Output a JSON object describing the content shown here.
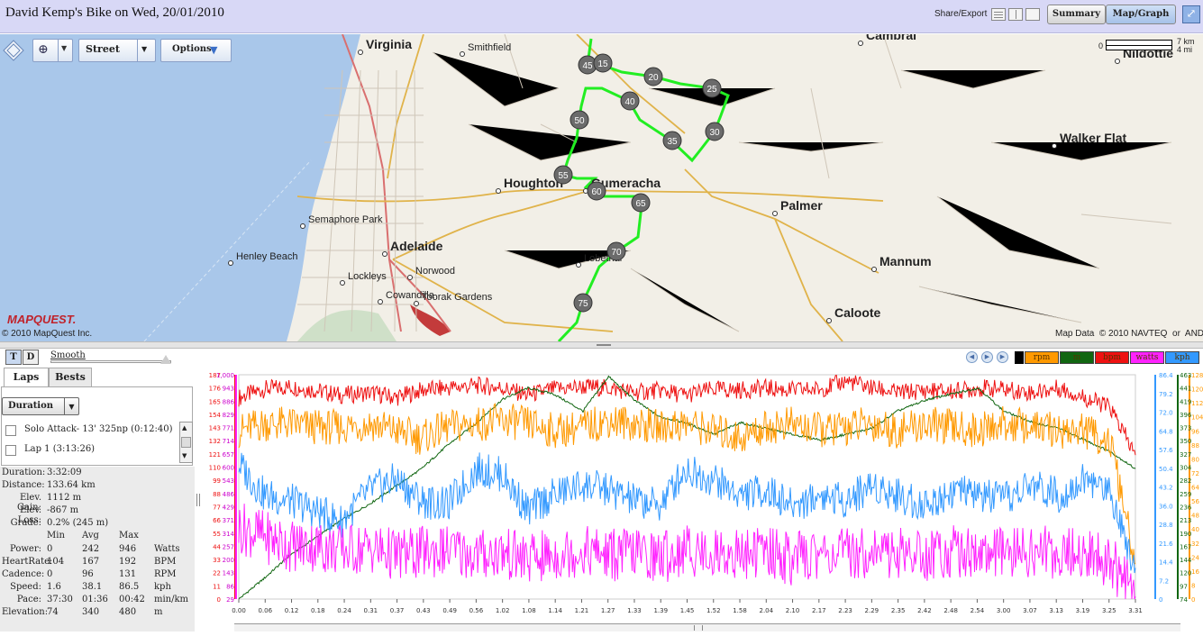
{
  "header": {
    "title": "David Kemp's Bike on Wed, 20/01/2010",
    "share": "Share/Export",
    "summary_btn": "Summary",
    "mapgraph_btn": "Map/Graph"
  },
  "map": {
    "street_select": "Street",
    "options_btn": "Options",
    "scale_km": "7 km",
    "scale_mi": "4 mi",
    "scale_zero": "0",
    "copyright": "© 2010 MapQuest Inc.",
    "logo": "MAPQUEST.",
    "map_data": "Map Data  © 2010 NAVTEQ  or  AND",
    "places": [
      {
        "name": "Virginia",
        "big": true
      },
      {
        "name": "Smithfield",
        "big": false
      },
      {
        "name": "Cambrai",
        "big": true
      },
      {
        "name": "Nildottie",
        "big": true
      },
      {
        "name": "Walker Flat",
        "big": true
      },
      {
        "name": "Houghton",
        "big": true
      },
      {
        "name": "Gumeracha",
        "big": true
      },
      {
        "name": "Palmer",
        "big": true
      },
      {
        "name": "Semaphore Park",
        "big": false
      },
      {
        "name": "Adelaide",
        "big": true
      },
      {
        "name": "Henley Beach",
        "big": false
      },
      {
        "name": "Norwood",
        "big": false
      },
      {
        "name": "Lockleys",
        "big": false
      },
      {
        "name": "Cowandilla",
        "big": false
      },
      {
        "name": "Toorak Gardens",
        "big": false
      },
      {
        "name": "Lobethal",
        "big": false
      },
      {
        "name": "Mannum",
        "big": true
      },
      {
        "name": "Caloote",
        "big": true
      }
    ],
    "markers": [
      "45",
      "15",
      "20",
      "25",
      "40",
      "50",
      "30",
      "35",
      "55",
      "60",
      "65",
      "70",
      "75"
    ]
  },
  "left": {
    "t_btn": "T",
    "d_btn": "D",
    "smooth": "Smooth",
    "tab_laps": "Laps",
    "tab_bests": "Bests",
    "duration_select": "Duration",
    "laps": [
      "Solo Attack- 13' 325np (0:12:40)",
      "Lap 1 (3:13:26)"
    ],
    "summary": [
      {
        "label": "Duration:",
        "value": "3:32:09"
      },
      {
        "label": "Distance:",
        "value": "133.64 km"
      },
      {
        "label": "Elev. Gain:",
        "value": "1112 m"
      },
      {
        "label": "Elev. Loss:",
        "value": "-867 m"
      },
      {
        "label": "Grade:",
        "value": "0.2% (245 m)"
      }
    ],
    "col_headers": [
      "Min",
      "Avg",
      "Max"
    ],
    "rows": [
      {
        "label": "Power:",
        "min": "0",
        "avg": "242",
        "max": "946",
        "unit": "Watts"
      },
      {
        "label": "HeartRate:",
        "min": "104",
        "avg": "167",
        "max": "192",
        "unit": "BPM"
      },
      {
        "label": "Cadence:",
        "min": "0",
        "avg": "96",
        "max": "131",
        "unit": "RPM"
      },
      {
        "label": "Speed:",
        "min": "1.6",
        "avg": "38.1",
        "max": "86.5",
        "unit": "kph"
      },
      {
        "label": "Pace:",
        "min": "37:30",
        "avg": "01:36",
        "max": "00:42",
        "unit": "min/km"
      },
      {
        "label": "Elevation:",
        "min": "74",
        "avg": "340",
        "max": "480",
        "unit": "m"
      }
    ]
  },
  "graph": {
    "legend": [
      {
        "label": "rpm",
        "color": "#ff9900"
      },
      {
        "label": "m",
        "color": "#116611"
      },
      {
        "label": "bpm",
        "color": "#ee1111"
      },
      {
        "label": "watts",
        "color": "#ff22ff"
      },
      {
        "label": "kph",
        "color": "#3399ff"
      }
    ],
    "x_ticks": [
      "0.00",
      "0.06",
      "0.12",
      "0.18",
      "0.24",
      "0.31",
      "0.37",
      "0.43",
      "0.49",
      "0.56",
      "1.02",
      "1.08",
      "1.14",
      "1.21",
      "1.27",
      "1.33",
      "1.39",
      "1.45",
      "1.52",
      "1.58",
      "2.04",
      "2.10",
      "2.17",
      "2.23",
      "2.29",
      "2.35",
      "2.42",
      "2.48",
      "2.54",
      "3.00",
      "3.07",
      "3.13",
      "3.19",
      "3.25",
      "3.31"
    ],
    "axis_bpm": [
      "187",
      "176",
      "165",
      "154",
      "143",
      "132",
      "121",
      "110",
      "99",
      "88",
      "77",
      "66",
      "55",
      "44",
      "33",
      "22",
      "11",
      "0"
    ],
    "axis_watts": [
      "1,000",
      "943",
      "886",
      "829",
      "771",
      "714",
      "657",
      "600",
      "543",
      "486",
      "429",
      "371",
      "314",
      "257",
      "200",
      "143",
      "86",
      "29"
    ],
    "axis_kph": [
      "86.4",
      "79.2",
      "72.0",
      "64.8",
      "57.6",
      "50.4",
      "43.2",
      "36.0",
      "28.8",
      "21.6",
      "14.4",
      "7.2",
      "0"
    ],
    "axis_m": [
      "463",
      "441",
      "419",
      "396",
      "373",
      "350",
      "327",
      "304",
      "282",
      "259",
      "236",
      "213",
      "190",
      "167",
      "144",
      "120",
      "97",
      "74"
    ],
    "axis_rpm": [
      "128",
      "120",
      "112",
      "104",
      "96",
      "88",
      "80",
      "72",
      "64",
      "56",
      "48",
      "40",
      "32",
      "24",
      "16",
      "8",
      "0"
    ]
  },
  "chart_data": {
    "type": "line",
    "x": [
      0,
      6,
      12,
      18,
      24,
      31,
      37,
      43,
      49,
      56,
      62,
      68,
      74,
      81,
      87,
      93,
      99,
      105,
      112,
      118,
      124,
      130,
      137,
      143,
      149,
      155,
      162,
      168,
      174,
      180,
      187,
      193,
      199,
      205,
      211
    ],
    "xlabel": "",
    "series": [
      {
        "name": "bpm",
        "color": "#ee1111",
        "values": [
          168,
          175,
          177,
          174,
          170,
          172,
          168,
          174,
          176,
          178,
          176,
          170,
          175,
          177,
          176,
          172,
          174,
          170,
          175,
          174,
          176,
          174,
          175,
          182,
          176,
          172,
          174,
          173,
          176,
          175,
          172,
          176,
          168,
          160,
          120
        ]
      },
      {
        "name": "m",
        "color": "#116611",
        "values": [
          74,
          110,
          150,
          180,
          210,
          240,
          270,
          300,
          340,
          380,
          420,
          440,
          430,
          400,
          460,
          420,
          390,
          380,
          360,
          380,
          370,
          360,
          350,
          360,
          370,
          400,
          420,
          430,
          440,
          400,
          380,
          370,
          350,
          330,
          300
        ]
      },
      {
        "name": "rpm",
        "color": "#ff9900",
        "values": [
          96,
          100,
          100,
          98,
          98,
          100,
          96,
          92,
          98,
          100,
          102,
          100,
          96,
          98,
          102,
          100,
          98,
          100,
          96,
          92,
          98,
          100,
          96,
          98,
          100,
          96,
          100,
          98,
          96,
          100,
          98,
          96,
          96,
          90,
          20
        ]
      },
      {
        "name": "kph",
        "color": "#3399ff",
        "values": [
          52,
          40,
          38,
          34,
          30,
          42,
          46,
          38,
          36,
          50,
          48,
          34,
          40,
          44,
          42,
          38,
          36,
          50,
          46,
          40,
          42,
          36,
          40,
          38,
          44,
          40,
          36,
          42,
          40,
          38,
          44,
          40,
          46,
          42,
          12
        ]
      },
      {
        "name": "watts",
        "color": "#ff22ff",
        "values": [
          340,
          300,
          260,
          260,
          240,
          250,
          220,
          230,
          240,
          220,
          230,
          200,
          220,
          240,
          220,
          230,
          210,
          240,
          230,
          220,
          240,
          200,
          230,
          220,
          240,
          230,
          220,
          240,
          230,
          220,
          240,
          230,
          220,
          200,
          40
        ]
      }
    ]
  }
}
